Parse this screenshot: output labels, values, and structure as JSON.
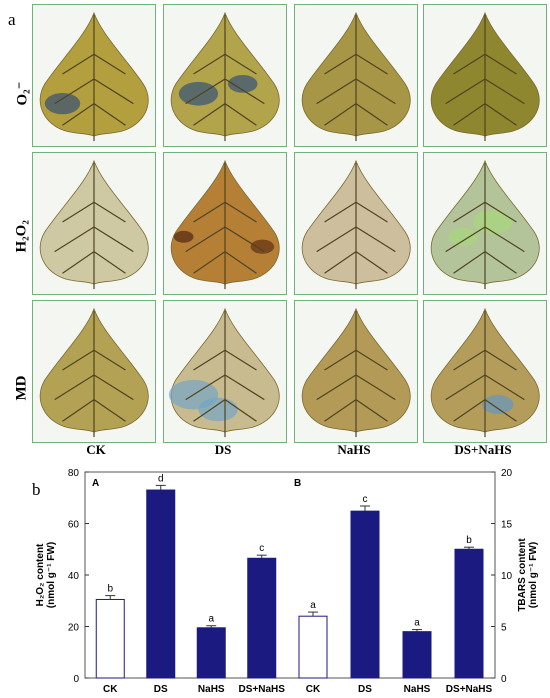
{
  "panel_a": {
    "letter": "a",
    "row_labels": [
      "O₂⁻",
      "H₂O₂",
      "MD"
    ],
    "col_labels": [
      "CK",
      "DS",
      "NaHS",
      "DS+NaHS"
    ],
    "tile_note": "leaf stain images"
  },
  "panel_b": {
    "letter": "b"
  },
  "colors": {
    "filled": "#1a1a80",
    "open": "#ffffff",
    "outline": "#1a1a80",
    "tile_border": "#6fb27a"
  },
  "chart_data": [
    {
      "type": "bar",
      "panel_label": "A",
      "categories": [
        "CK",
        "DS",
        "NaHS",
        "DS+NaHS"
      ],
      "values": [
        30.5,
        73,
        19.5,
        46.5
      ],
      "errors": [
        1.5,
        1.8,
        0.8,
        1.2
      ],
      "letters": [
        "b",
        "d",
        "a",
        "c"
      ],
      "fill": [
        "open",
        "filled",
        "filled",
        "filled"
      ],
      "ylabel_line1": "H₂O₂ content",
      "ylabel_line2": "(nmol g⁻¹ FW)",
      "ylim": [
        0,
        80
      ],
      "yticks": [
        0,
        20,
        40,
        60,
        80
      ],
      "axis_side": "left"
    },
    {
      "type": "bar",
      "panel_label": "B",
      "categories": [
        "CK",
        "DS",
        "NaHS",
        "DS+NaHS"
      ],
      "values": [
        6.0,
        16.2,
        4.5,
        12.5
      ],
      "errors": [
        0.4,
        0.5,
        0.2,
        0.2
      ],
      "letters": [
        "a",
        "c",
        "a",
        "b"
      ],
      "fill": [
        "open",
        "filled",
        "filled",
        "filled"
      ],
      "ylabel_line1": "TBARS content",
      "ylabel_line2": "(nmol g⁻¹ FW)",
      "ylim": [
        0,
        20
      ],
      "yticks": [
        0,
        5,
        10,
        15,
        20
      ],
      "axis_side": "right"
    }
  ]
}
